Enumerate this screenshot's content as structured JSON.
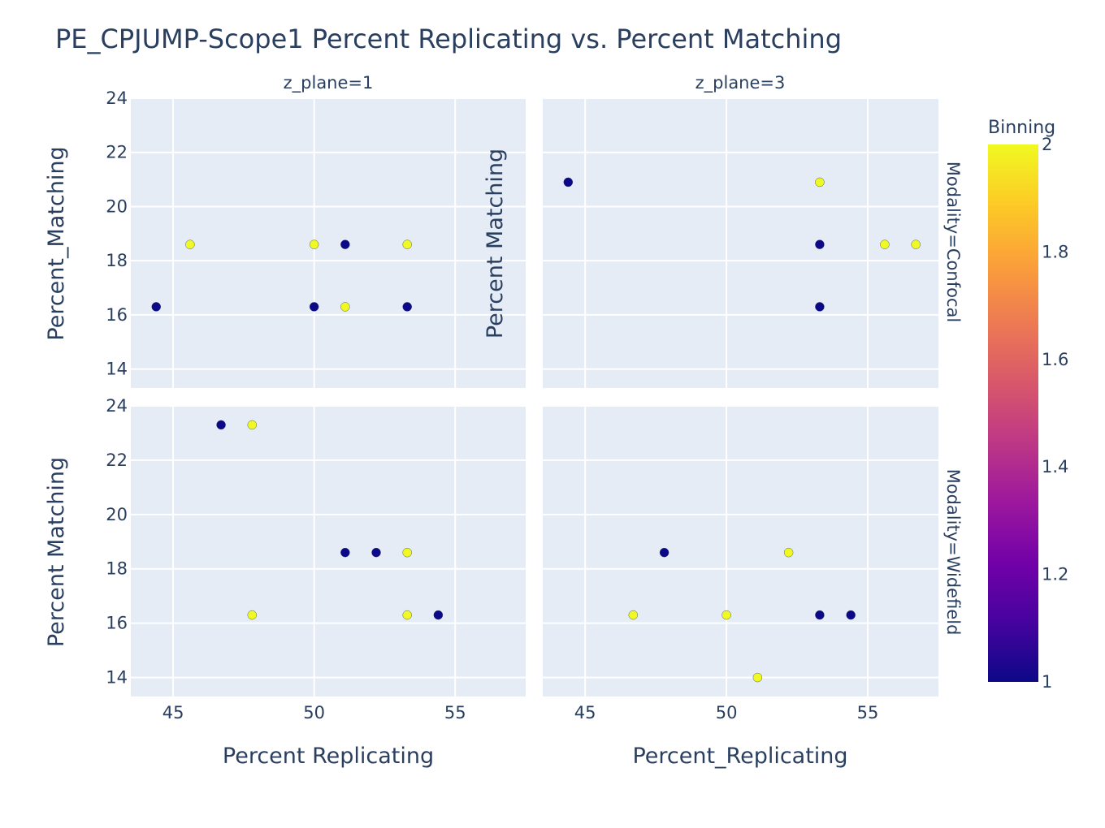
{
  "chart_data": {
    "type": "scatter",
    "title": "PE_CPJUMP-Scope1 Percent Replicating vs. Percent Matching",
    "col_facets": [
      "z_plane=1",
      "z_plane=3"
    ],
    "row_facets": [
      "Modality=Confocal",
      "Modality=Widefield"
    ],
    "x_axis_titles": [
      "Percent Replicating",
      "Percent_Replicating"
    ],
    "y_axis_titles": {
      "top_left": "Percent_Matching",
      "top_right": "Percent Matching",
      "bottom_left": "Percent Matching"
    },
    "xlim": [
      43.5,
      57.5
    ],
    "x_ticks": [
      45,
      50,
      55
    ],
    "ylim_top": [
      13.3,
      24
    ],
    "ylim_bottom": [
      13.3,
      24
    ],
    "y_ticks_top": [
      14,
      16,
      18,
      20,
      22,
      24
    ],
    "y_ticks_bottom": [
      14,
      16,
      18,
      20,
      22,
      24
    ],
    "grid": true,
    "color_variable": "Binning",
    "colorbar": {
      "title": "Binning",
      "min": 1,
      "max": 2,
      "ticks": [
        1,
        1.2,
        1.4,
        1.6,
        1.8,
        2
      ],
      "tick_labels": [
        "1",
        "1.2",
        "1.4",
        "1.6",
        "1.8",
        "2"
      ],
      "colorscale": [
        "#0d0887",
        "#46039f",
        "#7201a8",
        "#9c179e",
        "#bd3786",
        "#d8576b",
        "#ed7953",
        "#fb9f3a",
        "#fdca26",
        "#f0f921"
      ]
    },
    "panels": [
      {
        "col": 0,
        "row": 0,
        "points": [
          {
            "x": 44.4,
            "y": 16.3,
            "binning": 1
          },
          {
            "x": 45.6,
            "y": 18.6,
            "binning": 2
          },
          {
            "x": 50.0,
            "y": 18.6,
            "binning": 2
          },
          {
            "x": 50.0,
            "y": 16.3,
            "binning": 1
          },
          {
            "x": 51.1,
            "y": 18.6,
            "binning": 1
          },
          {
            "x": 51.1,
            "y": 16.3,
            "binning": 2
          },
          {
            "x": 53.3,
            "y": 18.6,
            "binning": 2
          },
          {
            "x": 53.3,
            "y": 16.3,
            "binning": 1
          }
        ]
      },
      {
        "col": 1,
        "row": 0,
        "points": [
          {
            "x": 44.4,
            "y": 20.9,
            "binning": 1
          },
          {
            "x": 53.3,
            "y": 20.9,
            "binning": 2
          },
          {
            "x": 53.3,
            "y": 18.6,
            "binning": 1
          },
          {
            "x": 53.3,
            "y": 16.3,
            "binning": 1
          },
          {
            "x": 55.6,
            "y": 18.6,
            "binning": 2
          },
          {
            "x": 56.7,
            "y": 18.6,
            "binning": 2
          }
        ]
      },
      {
        "col": 0,
        "row": 1,
        "points": [
          {
            "x": 46.7,
            "y": 23.3,
            "binning": 1
          },
          {
            "x": 47.8,
            "y": 23.3,
            "binning": 2
          },
          {
            "x": 47.8,
            "y": 16.3,
            "binning": 2
          },
          {
            "x": 51.1,
            "y": 18.6,
            "binning": 1
          },
          {
            "x": 52.2,
            "y": 18.6,
            "binning": 1
          },
          {
            "x": 53.3,
            "y": 18.6,
            "binning": 2
          },
          {
            "x": 53.3,
            "y": 16.3,
            "binning": 2
          },
          {
            "x": 54.4,
            "y": 16.3,
            "binning": 1
          }
        ]
      },
      {
        "col": 1,
        "row": 1,
        "points": [
          {
            "x": 46.7,
            "y": 16.3,
            "binning": 2
          },
          {
            "x": 47.8,
            "y": 18.6,
            "binning": 1
          },
          {
            "x": 50.0,
            "y": 16.3,
            "binning": 2
          },
          {
            "x": 51.1,
            "y": 14.0,
            "binning": 2
          },
          {
            "x": 52.2,
            "y": 18.6,
            "binning": 2
          },
          {
            "x": 53.3,
            "y": 16.3,
            "binning": 1
          },
          {
            "x": 54.4,
            "y": 16.3,
            "binning": 1
          }
        ]
      }
    ]
  }
}
